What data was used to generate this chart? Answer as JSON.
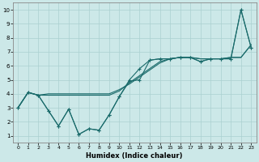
{
  "xlabel": "Humidex (Indice chaleur)",
  "xlim": [
    -0.5,
    23.5
  ],
  "ylim": [
    0.5,
    10.5
  ],
  "xticks": [
    0,
    1,
    2,
    3,
    4,
    5,
    6,
    7,
    8,
    9,
    10,
    11,
    12,
    13,
    14,
    15,
    16,
    17,
    18,
    19,
    20,
    21,
    22,
    23
  ],
  "yticks": [
    1,
    2,
    3,
    4,
    5,
    6,
    7,
    8,
    9,
    10
  ],
  "bg_color": "#cce8e8",
  "grid_color": "#aad0d0",
  "line_color": "#1a6b6b",
  "line1_x": [
    0,
    1,
    2,
    3,
    4,
    5,
    6,
    7,
    8,
    9,
    10,
    11,
    12,
    13,
    14,
    15,
    16,
    17,
    18,
    19,
    20,
    21,
    22,
    23
  ],
  "line1_y": [
    3.0,
    4.1,
    3.9,
    4.0,
    4.0,
    4.0,
    4.0,
    4.0,
    4.0,
    4.0,
    4.3,
    4.7,
    5.2,
    5.7,
    6.2,
    6.5,
    6.6,
    6.6,
    6.5,
    6.5,
    6.5,
    6.6,
    6.6,
    7.5
  ],
  "line2_x": [
    0,
    1,
    2,
    3,
    4,
    5,
    6,
    7,
    8,
    9,
    10,
    11,
    12,
    13,
    14,
    15,
    16,
    17,
    18,
    19,
    20,
    21,
    22,
    23
  ],
  "line2_y": [
    3.0,
    4.1,
    3.9,
    2.8,
    1.7,
    2.9,
    1.1,
    1.5,
    1.4,
    2.5,
    3.8,
    4.9,
    5.0,
    6.4,
    6.5,
    6.5,
    6.6,
    6.6,
    6.3,
    6.5,
    6.5,
    6.5,
    10.0,
    7.3
  ],
  "line3_x": [
    0,
    1,
    2,
    3,
    4,
    5,
    6,
    7,
    8,
    9,
    10,
    11,
    12,
    13,
    14,
    15,
    16,
    17,
    18,
    19,
    20,
    21,
    22,
    23
  ],
  "line3_y": [
    3.0,
    4.1,
    3.9,
    3.9,
    3.9,
    3.9,
    3.9,
    3.9,
    3.9,
    3.9,
    4.2,
    4.8,
    5.3,
    5.8,
    6.3,
    6.5,
    6.6,
    6.6,
    6.5,
    6.5,
    6.5,
    6.6,
    6.6,
    7.5
  ],
  "line4_x": [
    0,
    1,
    2,
    3,
    4,
    5,
    6,
    7,
    8,
    9,
    10,
    11,
    12,
    13,
    14,
    15,
    16,
    17,
    18,
    19,
    20,
    21,
    22,
    23
  ],
  "line4_y": [
    3.0,
    4.1,
    3.9,
    2.8,
    1.7,
    2.9,
    1.1,
    1.5,
    1.4,
    2.5,
    3.8,
    5.0,
    5.8,
    6.4,
    6.5,
    6.5,
    6.6,
    6.6,
    6.3,
    6.5,
    6.5,
    6.5,
    10.0,
    7.3
  ]
}
